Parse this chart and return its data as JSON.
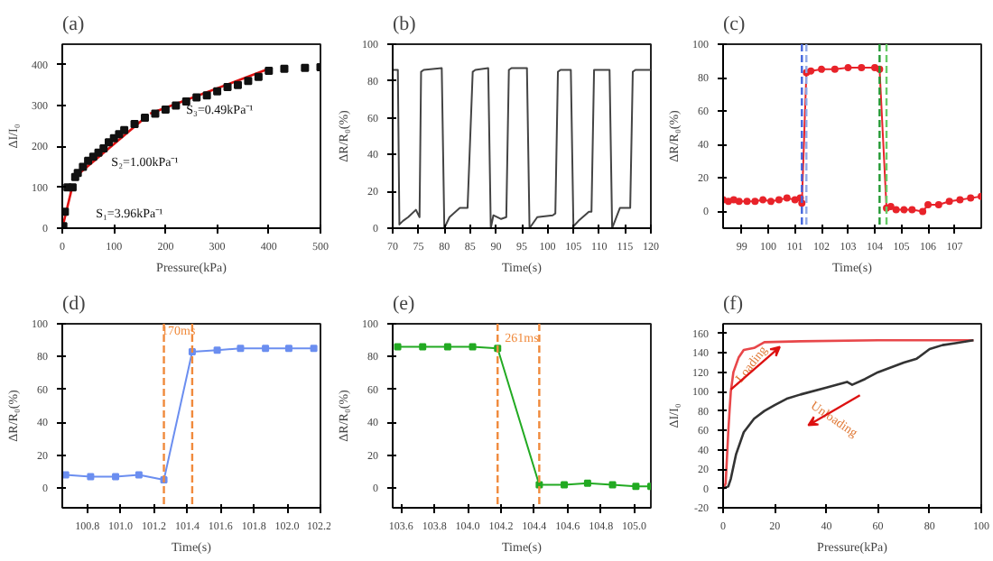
{
  "chart_data": [
    {
      "type": "line",
      "title": "(a)",
      "xlabel": "Pressure(kPa)",
      "ylabel": "ΔI/I₀",
      "xlim": [
        0,
        500
      ],
      "ylim": [
        0,
        450
      ],
      "xticks": [
        0,
        100,
        200,
        300,
        400,
        500
      ],
      "yticks": [
        0,
        100,
        200,
        300,
        400
      ],
      "grid": false,
      "series": [
        {
          "type": "scatter",
          "marker": "square",
          "color": "#111111",
          "x": [
            2,
            5,
            10,
            20,
            25,
            30,
            40,
            50,
            60,
            70,
            80,
            90,
            100,
            110,
            120,
            140,
            160,
            180,
            200,
            220,
            240,
            260,
            280,
            300,
            320,
            340,
            360,
            380,
            400,
            430,
            470,
            500
          ],
          "values": [
            5,
            40,
            100,
            100,
            125,
            135,
            150,
            165,
            175,
            185,
            195,
            210,
            220,
            230,
            240,
            255,
            270,
            280,
            290,
            300,
            310,
            320,
            325,
            335,
            345,
            350,
            360,
            370,
            385,
            390,
            392,
            394
          ]
        },
        {
          "type": "line",
          "color": "#e01010",
          "x": [
            0,
            20
          ],
          "values": [
            0,
            105
          ]
        },
        {
          "type": "line",
          "color": "#e01010",
          "x": [
            20,
            165
          ],
          "values": [
            120,
            275
          ]
        },
        {
          "type": "line",
          "color": "#e01010",
          "x": [
            170,
            400
          ],
          "values": [
            280,
            390
          ]
        }
      ],
      "annotations": [
        "S₁=3.96kPa⁻¹",
        "S₂=1.00kPa⁻¹",
        "S₃=0.49kPa⁻¹"
      ]
    },
    {
      "type": "line",
      "title": "(b)",
      "xlabel": "Time(s)",
      "ylabel": "ΔR/R₀(%)",
      "xlim": [
        70,
        120
      ],
      "ylim": [
        0,
        100
      ],
      "xticks": [
        70,
        75,
        80,
        85,
        90,
        95,
        100,
        105,
        110,
        115,
        120
      ],
      "yticks": [
        0,
        20,
        40,
        60,
        80,
        100
      ],
      "grid": false,
      "series": [
        {
          "color": "#444444",
          "x": [
            70,
            71,
            71.3,
            72,
            73,
            74.5,
            75.2,
            75.5,
            76,
            79.5,
            80,
            81,
            83,
            84.5,
            85.5,
            86,
            88.5,
            89,
            89.5,
            91,
            92,
            92.5,
            93,
            96,
            96.5,
            98,
            101,
            101.5,
            102,
            102.5,
            104.5,
            105,
            106,
            108,
            108.5,
            109,
            109.5,
            112,
            112.5,
            114,
            116,
            116.5,
            117,
            120
          ],
          "values": [
            86,
            86,
            2,
            4,
            6,
            10,
            6,
            85,
            86,
            87,
            0,
            6,
            11,
            11,
            85,
            86,
            87,
            0,
            7,
            5,
            6,
            86,
            87,
            87,
            0,
            6,
            7,
            8,
            85,
            86,
            86,
            1,
            4,
            9,
            9,
            86,
            86,
            86,
            0,
            11,
            11,
            85,
            86,
            86
          ]
        }
      ]
    },
    {
      "type": "line",
      "title": "(c)",
      "xlabel": "Time(s)",
      "ylabel": "ΔR/R₀(%)",
      "xlim": [
        98.3,
        108
      ],
      "ylim": [
        -10,
        100
      ],
      "xticks": [
        99,
        100,
        101,
        102,
        103,
        104,
        105,
        106,
        107
      ],
      "yticks": [
        0,
        20,
        40,
        60,
        80,
        100
      ],
      "grid": false,
      "marker": "circle",
      "series": [
        {
          "color": "#e8232a",
          "x": [
            98.3,
            98.5,
            98.7,
            98.9,
            99.2,
            99.5,
            99.8,
            100.1,
            100.4,
            100.7,
            101,
            101.2,
            101.26,
            101.43,
            101.6,
            102,
            102.5,
            103,
            103.5,
            104,
            104.18,
            104.44,
            104.6,
            104.8,
            105.1,
            105.4,
            105.8,
            106,
            106.4,
            106.8,
            107.2,
            107.6,
            108
          ],
          "values": [
            7,
            6,
            7,
            6,
            6,
            6,
            7,
            6,
            7,
            8,
            7,
            8,
            5,
            83,
            84,
            85,
            85,
            86,
            86,
            86,
            85,
            2,
            3,
            1,
            1,
            1,
            0,
            4,
            4,
            6,
            7,
            8,
            9
          ]
        }
      ],
      "ref_lines": [
        {
          "axis": "x",
          "value": 101.26,
          "color": "#4466dd",
          "line_style": "dashed"
        },
        {
          "axis": "x",
          "value": 101.43,
          "color": "#8fa8e8",
          "line_style": "dashed"
        },
        {
          "axis": "x",
          "value": 104.18,
          "color": "#229933",
          "line_style": "dashed"
        },
        {
          "axis": "x",
          "value": 104.44,
          "color": "#66cc66",
          "line_style": "dashed"
        }
      ]
    },
    {
      "type": "line",
      "title": "(d)",
      "xlabel": "Time(s)",
      "ylabel": "ΔR/R₀(%)",
      "xlim": [
        100.65,
        102.2
      ],
      "ylim": [
        -12,
        100
      ],
      "xticks": [
        {
          "value": 100.8,
          "label": "100.8"
        },
        {
          "value": 101.0,
          "label": "101.0"
        },
        {
          "value": 101.2,
          "label": "101.2"
        },
        {
          "value": 101.4,
          "label": "101.4"
        },
        {
          "value": 101.6,
          "label": "101.6"
        },
        {
          "value": 101.8,
          "label": "101.8"
        },
        {
          "value": 102.0,
          "label": "102.0"
        },
        {
          "value": 102.2,
          "label": "102.2"
        }
      ],
      "yticks": [
        0,
        20,
        40,
        60,
        80,
        100
      ],
      "grid": false,
      "marker": "square",
      "series": [
        {
          "color": "#6b8ef0",
          "x": [
            100.67,
            100.82,
            100.97,
            101.11,
            101.26,
            101.43,
            101.58,
            101.72,
            101.87,
            102.01,
            102.16
          ],
          "values": [
            8,
            7,
            7,
            8,
            5,
            83,
            84,
            85,
            85,
            85,
            85
          ]
        }
      ],
      "ref_lines": [
        {
          "axis": "x",
          "value": 101.26,
          "color": "#f08a3c",
          "line_style": "dashed"
        },
        {
          "axis": "x",
          "value": 101.43,
          "color": "#f08a3c",
          "line_style": "dashed"
        }
      ],
      "annotations": [
        "170ms"
      ]
    },
    {
      "type": "line",
      "title": "(e)",
      "xlabel": "Time(s)",
      "ylabel": "ΔR/R₀(%)",
      "xlim": [
        103.55,
        105.1
      ],
      "ylim": [
        -12,
        100
      ],
      "xticks": [
        {
          "value": 103.6,
          "label": "103.6"
        },
        {
          "value": 103.8,
          "label": "103.8"
        },
        {
          "value": 104.0,
          "label": "104.0"
        },
        {
          "value": 104.2,
          "label": "104.2"
        },
        {
          "value": 104.4,
          "label": "104.4"
        },
        {
          "value": 104.6,
          "label": "104.6"
        },
        {
          "value": 104.8,
          "label": "104.8"
        },
        {
          "value": 105.0,
          "label": "105.0"
        }
      ],
      "yticks": [
        0,
        20,
        40,
        60,
        80,
        100
      ],
      "grid": false,
      "marker": "square",
      "series": [
        {
          "color": "#22aa22",
          "x": [
            103.58,
            103.73,
            103.88,
            104.03,
            104.18,
            104.43,
            104.58,
            104.72,
            104.87,
            105.01,
            105.1
          ],
          "values": [
            86,
            86,
            86,
            86,
            85,
            2,
            2,
            3,
            2,
            1,
            1
          ]
        }
      ],
      "ref_lines": [
        {
          "axis": "x",
          "value": 104.18,
          "color": "#f08a3c",
          "line_style": "dashed"
        },
        {
          "axis": "x",
          "value": 104.43,
          "color": "#f08a3c",
          "line_style": "dashed"
        }
      ],
      "annotations": [
        "261ms"
      ]
    },
    {
      "type": "line",
      "title": "(f)",
      "xlabel": "Pressure(kPa)",
      "ylabel": "ΔI/I₀",
      "xlim": [
        0,
        100
      ],
      "ylim": [
        -20,
        170
      ],
      "xticks": [
        0,
        20,
        40,
        60,
        80,
        100
      ],
      "yticks": [
        -20,
        0,
        20,
        40,
        60,
        80,
        100,
        120,
        140,
        160
      ],
      "grid": false,
      "series": [
        {
          "color": "#e8474a",
          "x": [
            0,
            1,
            2,
            2.5,
            3,
            4,
            6,
            8,
            12,
            14,
            16,
            30,
            60,
            97
          ],
          "values": [
            0,
            5,
            58,
            80,
            100,
            120,
            135,
            143,
            145,
            148,
            151,
            152,
            153,
            153
          ]
        },
        {
          "color": "#333333",
          "x": [
            0,
            2,
            3,
            5,
            8,
            12,
            16,
            20,
            25,
            30,
            40,
            48,
            50,
            55,
            60,
            70,
            75,
            80,
            85,
            90,
            97
          ],
          "values": [
            0,
            2,
            10,
            35,
            58,
            72,
            80,
            86,
            93,
            97,
            104,
            110,
            107,
            113,
            120,
            130,
            134,
            144,
            148,
            150,
            153
          ]
        }
      ],
      "annotations": [
        "Loading",
        "Unloading"
      ]
    }
  ]
}
